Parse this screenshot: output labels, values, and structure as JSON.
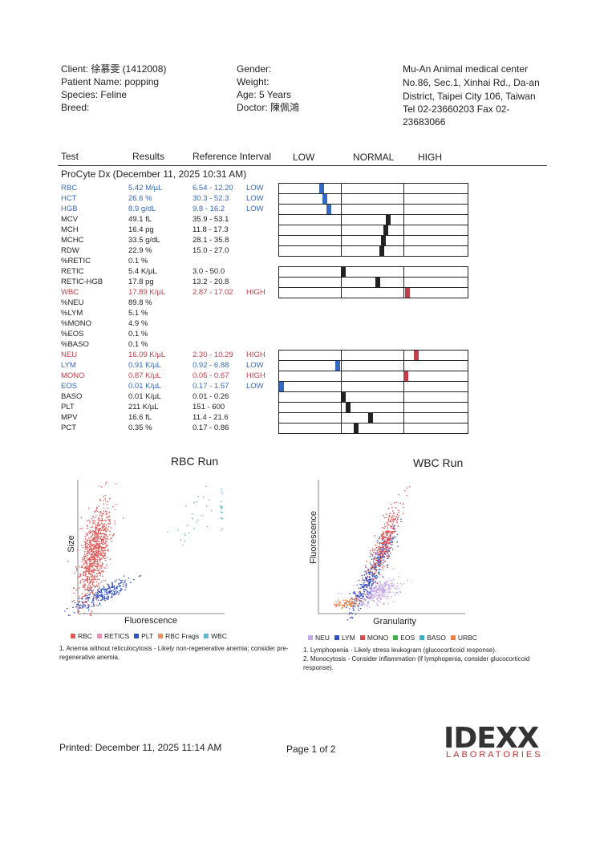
{
  "header": {
    "client": "Client: 徐慕雯 (1412008)",
    "patient": "Patient Name: popping",
    "species": "Species: Feline",
    "breed": "Breed:",
    "gender": "Gender:",
    "weight": "Weight:",
    "age": "Age: 5 Years",
    "doctor": "Doctor: 陳佩鴻",
    "clinic": [
      "Mu-An Animal medical center",
      "No.86, Sec.1, Xinhai Rd., Da-an",
      "District, Taipei City 106, Taiwan",
      "Tel 02-23660203  Fax 02-",
      "23683066"
    ]
  },
  "table": {
    "columns": [
      "Test",
      "Results",
      "Reference Interval",
      "LOW",
      "NORMAL",
      "HIGH"
    ],
    "section": "ProCyte Dx (December 11, 2025 10:31 AM)",
    "rows": [
      {
        "test": "RBC",
        "result": "5.42 M/µL",
        "reference": "6.54 - 12.20",
        "flag": "LOW",
        "color": "#3568c0",
        "gauge": true
      },
      {
        "test": "HCT",
        "result": "26.6 %",
        "reference": "30.3 - 52.3",
        "flag": "LOW",
        "color": "#3568c0",
        "gauge": true
      },
      {
        "test": "HGB",
        "result": "8.9 g/dL",
        "reference": "9.8 - 16.2",
        "flag": "LOW",
        "color": "#3568c0",
        "gauge": true
      },
      {
        "test": "MCV",
        "result": "49.1 fL",
        "reference": "35.9 - 53.1",
        "color": "#222",
        "gauge": true
      },
      {
        "test": "MCH",
        "result": "16.4 pg",
        "reference": "11.8 - 17.3",
        "color": "#222",
        "gauge": true
      },
      {
        "test": "MCHC",
        "result": "33.5 g/dL",
        "reference": "28.1 - 35.8",
        "color": "#222",
        "gauge": true
      },
      {
        "test": "RDW",
        "result": "22.9 %",
        "reference": "15.0 - 27.0",
        "color": "#222",
        "gauge": true
      },
      {
        "test": "%RETIC",
        "result": "0.1 %",
        "color": "#222",
        "gauge": false
      },
      {
        "test": "RETIC",
        "result": "5.4 K/µL",
        "reference": "3.0 - 50.0",
        "color": "#222",
        "gauge": true
      },
      {
        "test": "RETIC-HGB",
        "result": "17.8 pg",
        "reference": "13.2 - 20.8",
        "color": "#222",
        "gauge": true
      },
      {
        "test": "WBC",
        "result": "17.89 K/µL",
        "reference": "2.87 - 17.02",
        "flag": "HIGH",
        "color": "#c0404a",
        "gauge": true
      },
      {
        "test": "%NEU",
        "result": "89.8 %",
        "color": "#222",
        "gauge": false
      },
      {
        "test": "%LYM",
        "result": "5.1 %",
        "color": "#222",
        "gauge": false
      },
      {
        "test": "%MONO",
        "result": "4.9 %",
        "color": "#222",
        "gauge": false
      },
      {
        "test": "%EOS",
        "result": "0.1 %",
        "color": "#222",
        "gauge": false
      },
      {
        "test": "%BASO",
        "result": "0.1 %",
        "color": "#222",
        "gauge": false
      },
      {
        "test": "NEU",
        "result": "16.09 K/µL",
        "reference": "2.30 - 10.29",
        "flag": "HIGH",
        "color": "#c0404a",
        "gauge": true
      },
      {
        "test": "LYM",
        "result": "0.91 K/µL",
        "reference": "0.92 - 6.88",
        "flag": "LOW",
        "color": "#3568c0",
        "gauge": true
      },
      {
        "test": "MONO",
        "result": "0.87 K/µL",
        "reference": "0.05 - 0.67",
        "flag": "HIGH",
        "color": "#c0404a",
        "gauge": true
      },
      {
        "test": "EOS",
        "result": "0.01 K/µL",
        "reference": "0.17 - 1.57",
        "flag": "LOW",
        "color": "#3568c0",
        "gauge": true
      },
      {
        "test": "BASO",
        "result": "0.01 K/µL",
        "reference": "0.01 - 0.26",
        "color": "#222",
        "gauge": true
      },
      {
        "test": "PLT",
        "result": "211 K/µL",
        "reference": "151 - 600",
        "color": "#222",
        "gauge": true
      },
      {
        "test": "MPV",
        "result": "16.6 fL",
        "reference": "11.4 - 21.6",
        "color": "#222",
        "gauge": true
      },
      {
        "test": "PCT",
        "result": "0.35 %",
        "reference": "0.17 - 0.86",
        "color": "#222",
        "gauge": true
      }
    ]
  },
  "rbc_run": {
    "title": "RBC Run",
    "x_label": "Fluorescence",
    "y_label": "Size",
    "legend": [
      {
        "name": "RBC",
        "color": "#e05858"
      },
      {
        "name": "RETICS",
        "color": "#e890b8"
      },
      {
        "name": "PLT",
        "color": "#3050c0"
      },
      {
        "name": "RBC Frags",
        "color": "#e89060"
      },
      {
        "name": "WBC",
        "color": "#60b8d0"
      }
    ],
    "notes": [
      "1. Anemia without reticulocytosis - Likely non-regenerative anemia; consider pre-regenerative anemia."
    ]
  },
  "wbc_run": {
    "title": "WBC Run",
    "x_label": "Granularity",
    "y_label": "Fluorescence",
    "legend": [
      {
        "name": "NEU",
        "color": "#c4a8e8"
      },
      {
        "name": "LYM",
        "color": "#3050c0"
      },
      {
        "name": "MONO",
        "color": "#e04848"
      },
      {
        "name": "EOS",
        "color": "#40b048"
      },
      {
        "name": "BASO",
        "color": "#40b0c8"
      },
      {
        "name": "URBC",
        "color": "#e88048"
      }
    ],
    "notes": [
      "1. Lymphopenia - Likely stress leukogram (glucocorticoid response).",
      "2. Monocytosis - Consider inflammation (if lymphopenia, consider glucocorticoid response)."
    ]
  },
  "footer": {
    "printed": "Printed: December 11, 2025 11:14 AM",
    "page": "Page 1 of 2",
    "logo": "IDEXX",
    "logo_sub": "LABORATORIES"
  }
}
